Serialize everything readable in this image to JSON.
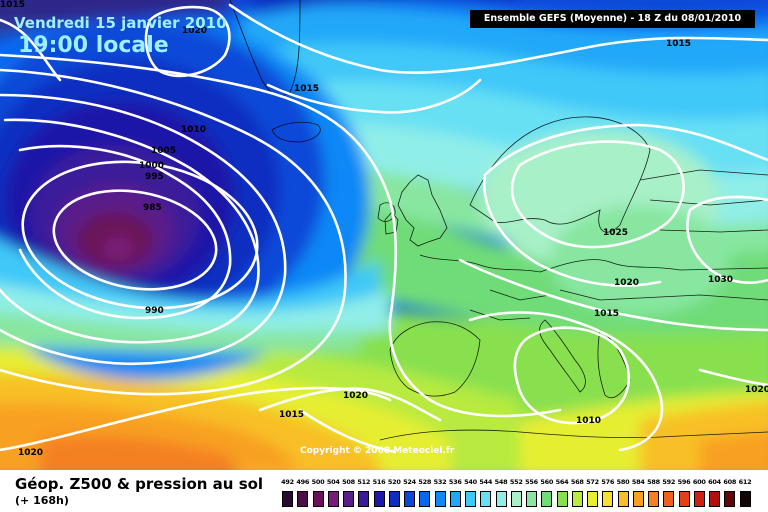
{
  "header": {
    "date_line": "Vendredi 15 janvier 2010",
    "time_line": "19:00 locale",
    "model_run": "Ensemble GEFS (Moyenne)  - 18 Z du 08/01/2010"
  },
  "footer": {
    "product_title": "Géop. Z500 & pression au sol",
    "lead_time": "(+ 168h)",
    "copyright": "Copyright © 2008 Meteociel.fr"
  },
  "legend": {
    "values": [
      "492",
      "496",
      "500",
      "504",
      "508",
      "512",
      "516",
      "520",
      "524",
      "528",
      "532",
      "536",
      "540",
      "544",
      "548",
      "552",
      "556",
      "560",
      "564",
      "568",
      "572",
      "576",
      "580",
      "584",
      "588",
      "592",
      "596",
      "600",
      "604",
      "608",
      "612"
    ],
    "colors": [
      "#2a0a32",
      "#4a0f48",
      "#6a1258",
      "#7a1a7a",
      "#5a1e8a",
      "#3b1a9a",
      "#1e18a8",
      "#0f2ec0",
      "#0a48d8",
      "#0a66ee",
      "#1088f6",
      "#20a8f8",
      "#40c8f8",
      "#68e0f4",
      "#90eee8",
      "#a8f0c8",
      "#88e6a0",
      "#70dc78",
      "#88e050",
      "#b8ea40",
      "#e6ee30",
      "#f8e030",
      "#f8c028",
      "#f8a020",
      "#f48020",
      "#ee6020",
      "#e44018",
      "#d02010",
      "#b01010",
      "#600808",
      "#100404"
    ]
  },
  "isobars": [
    {
      "label": "1015",
      "pos": "top-left"
    },
    {
      "label": "1020",
      "pos": "north-atlantic"
    },
    {
      "label": "1015",
      "pos": "north-sea"
    },
    {
      "label": "1015",
      "pos": "iceland"
    },
    {
      "label": "1010",
      "pos": "atlantic-north"
    },
    {
      "label": "1005",
      "pos": "atlantic"
    },
    {
      "label": "1000",
      "pos": "atlantic"
    },
    {
      "label": "995",
      "pos": "atlantic"
    },
    {
      "label": "985",
      "pos": "low-centre"
    },
    {
      "label": "990",
      "pos": "low-south"
    },
    {
      "label": "1025",
      "pos": "scandinavia"
    },
    {
      "label": "1020",
      "pos": "central-europe"
    },
    {
      "label": "1030",
      "pos": "russia"
    },
    {
      "label": "1015",
      "pos": "alps"
    },
    {
      "label": "1020",
      "pos": "iberia-west"
    },
    {
      "label": "1015",
      "pos": "south-atlantic"
    },
    {
      "label": "1010",
      "pos": "mediterranean"
    },
    {
      "label": "1020",
      "pos": "east-med"
    },
    {
      "label": "1020",
      "pos": "bottom-left"
    }
  ]
}
